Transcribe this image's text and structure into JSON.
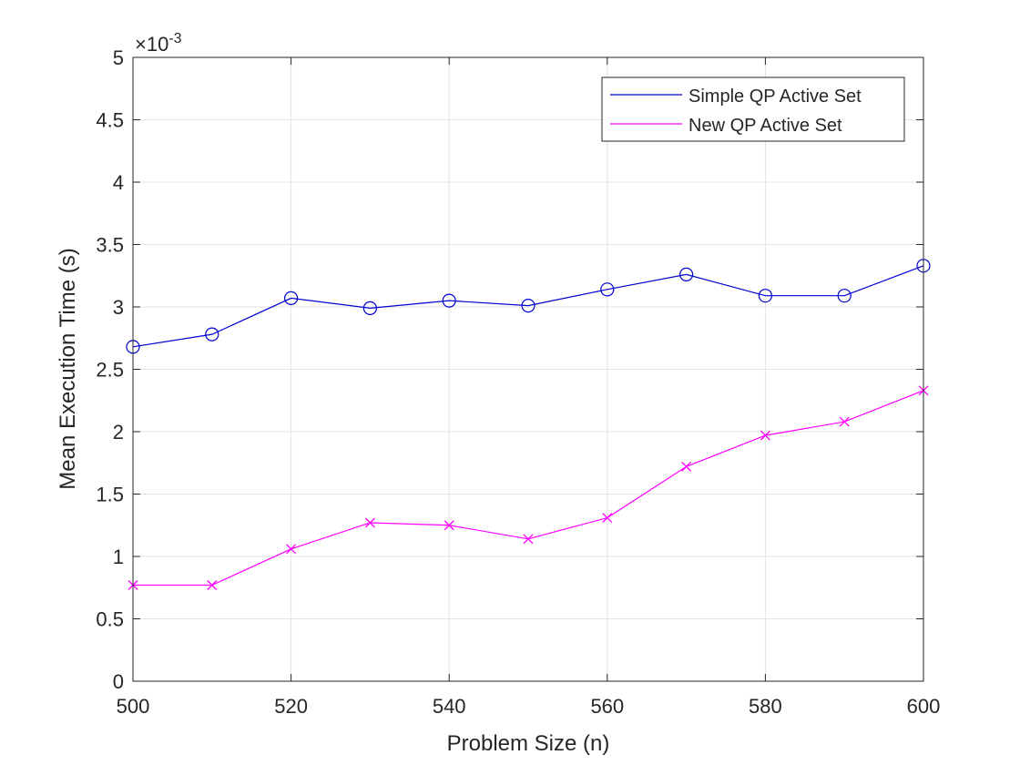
{
  "chart_data": {
    "type": "line",
    "xlabel": "Problem Size (n)",
    "ylabel": "Mean Execution Time (s)",
    "y_exponent_label": "×10",
    "y_exponent_power": "-3",
    "xlim": [
      500,
      600
    ],
    "ylim": [
      0,
      5
    ],
    "x_ticks": [
      500,
      520,
      540,
      560,
      580,
      600
    ],
    "x_tick_labels": [
      "500",
      "520",
      "540",
      "560",
      "580",
      "600"
    ],
    "y_ticks": [
      0,
      0.5,
      1,
      1.5,
      2,
      2.5,
      3,
      3.5,
      4,
      4.5,
      5
    ],
    "y_tick_labels": [
      "0",
      "0.5",
      "1",
      "1.5",
      "2",
      "2.5",
      "3",
      "3.5",
      "4",
      "4.5",
      "5"
    ],
    "grid": true,
    "legend_position": "top-right",
    "x": [
      500,
      510,
      520,
      530,
      540,
      550,
      560,
      570,
      580,
      590,
      600
    ],
    "series": [
      {
        "name": "Simple QP Active Set",
        "color": "#0000d0",
        "marker": "circle",
        "values": [
          2.68,
          2.78,
          3.07,
          2.99,
          3.05,
          3.01,
          3.14,
          3.26,
          3.09,
          3.09,
          3.33
        ]
      },
      {
        "name": "New QP Active Set",
        "color": "#ff00ff",
        "marker": "x",
        "values": [
          0.77,
          0.77,
          1.06,
          1.27,
          1.25,
          1.14,
          1.31,
          1.72,
          1.97,
          2.08,
          2.33
        ]
      }
    ]
  }
}
